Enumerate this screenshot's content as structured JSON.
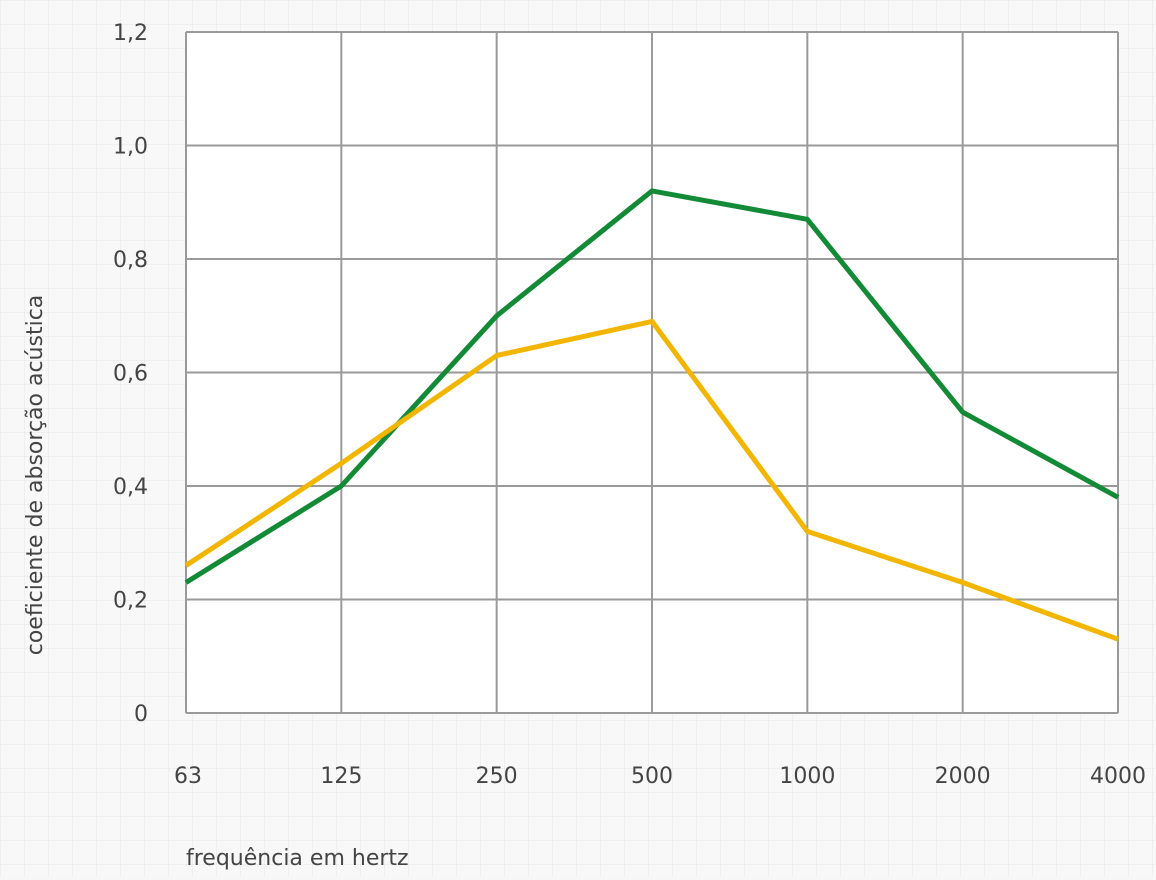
{
  "chart_data": {
    "type": "line",
    "title": "",
    "xlabel": "frequência em hertz",
    "ylabel": "coeficiente de absorção acústica",
    "categories": [
      "63",
      "125",
      "250",
      "500",
      "1000",
      "2000",
      "4000"
    ],
    "y_ticks": [
      "0",
      "0,2",
      "0,4",
      "0,6",
      "0,8",
      "1,0",
      "1,2"
    ],
    "ylim": [
      0,
      1.2
    ],
    "grid": true,
    "legend": "none",
    "series": [
      {
        "color": "#138a36",
        "values": [
          0.23,
          0.4,
          0.7,
          0.92,
          0.87,
          0.53,
          0.38
        ]
      },
      {
        "color": "#f2b600",
        "values": [
          0.26,
          0.44,
          0.63,
          0.69,
          0.32,
          0.23,
          0.13
        ]
      }
    ]
  }
}
